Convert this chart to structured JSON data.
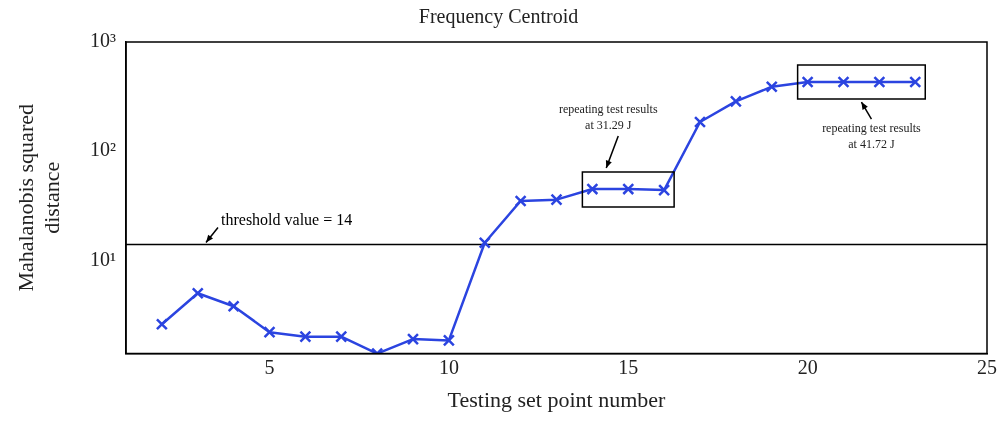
{
  "chart_data": {
    "type": "line",
    "title": "Frequency Centroid",
    "xlabel": "Testing set point number",
    "ylabel": "Mahalanobis squared\ndistance",
    "x": [
      2,
      3,
      4,
      5,
      6,
      7,
      8,
      9,
      10,
      11,
      12,
      13,
      14,
      15,
      16,
      17,
      18,
      19,
      20,
      21,
      22,
      23
    ],
    "values": [
      2.6,
      5.0,
      3.8,
      2.2,
      2.0,
      2.0,
      1.4,
      1.9,
      1.85,
      14.5,
      35,
      36,
      45,
      45,
      44,
      185,
      286,
      389,
      430,
      430,
      430,
      430
    ],
    "color": "#2b44e0",
    "marker": "cross",
    "log": "y",
    "grid": false,
    "legend": false,
    "xlim": [
      1,
      25
    ],
    "xticks": [
      5,
      10,
      15,
      20,
      25
    ],
    "ylim": [
      1.4,
      1000
    ],
    "yticks": [
      {
        "value": 10,
        "label": "10¹"
      },
      {
        "value": 100,
        "label": "10²"
      },
      {
        "value": 1000,
        "label": "10³"
      }
    ],
    "ref_lines": [
      {
        "axis": "y",
        "value": 14,
        "label": "threshold value = 14",
        "color": "#000000"
      }
    ],
    "annotations": [
      "repeating test results\nat 31.29 J",
      "repeating test results\nat 41.72 J"
    ]
  }
}
